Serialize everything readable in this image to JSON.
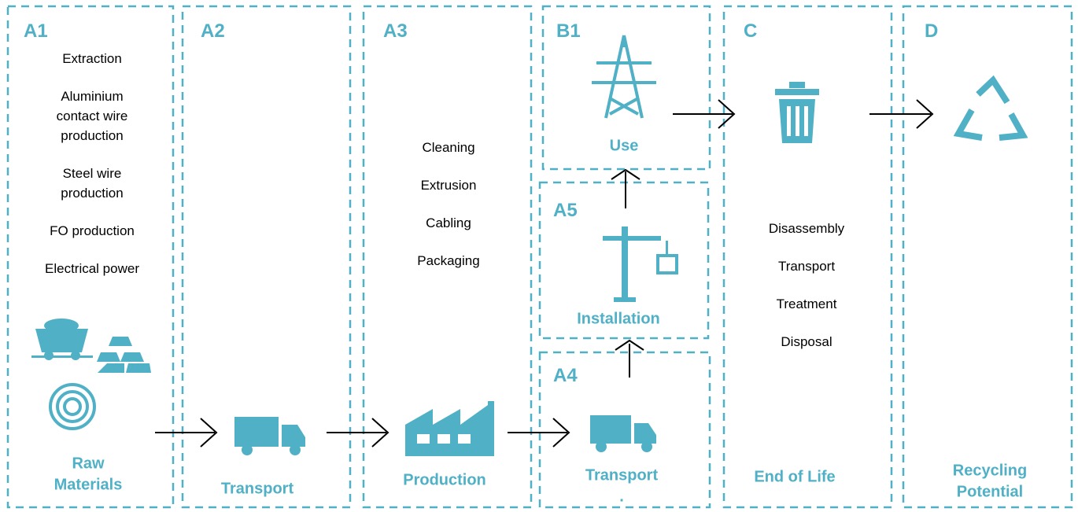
{
  "stages": [
    {
      "code": "A1",
      "items": [
        [
          "Extraction"
        ],
        [
          "Aluminium",
          "contact wire",
          "production"
        ],
        [
          "Steel wire",
          "production"
        ],
        [
          "FO production"
        ],
        [
          "Electrical power"
        ]
      ],
      "label": [
        "Raw",
        "Materials"
      ]
    },
    {
      "code": "A2",
      "items": [],
      "label": [
        "Transport"
      ]
    },
    {
      "code": "A3",
      "items": [
        [
          "Cleaning"
        ],
        [
          "Extrusion"
        ],
        [
          "Cabling"
        ],
        [
          "Packaging"
        ]
      ],
      "label": [
        "Production"
      ]
    },
    {
      "code": "B1",
      "items": [],
      "label": [
        "Use"
      ]
    },
    {
      "code": "A5",
      "items": [],
      "label": [
        "Installation"
      ]
    },
    {
      "code": "A4",
      "items": [],
      "label": [
        "Transport",
        "."
      ]
    },
    {
      "code": "C",
      "items": [
        [
          "Disassembly"
        ],
        [
          "Transport"
        ],
        [
          "Treatment"
        ],
        [
          "Disposal"
        ]
      ],
      "label": [
        "End of Life"
      ]
    },
    {
      "code": "D",
      "items": [],
      "label": [
        "Recycling",
        "Potential"
      ]
    }
  ]
}
